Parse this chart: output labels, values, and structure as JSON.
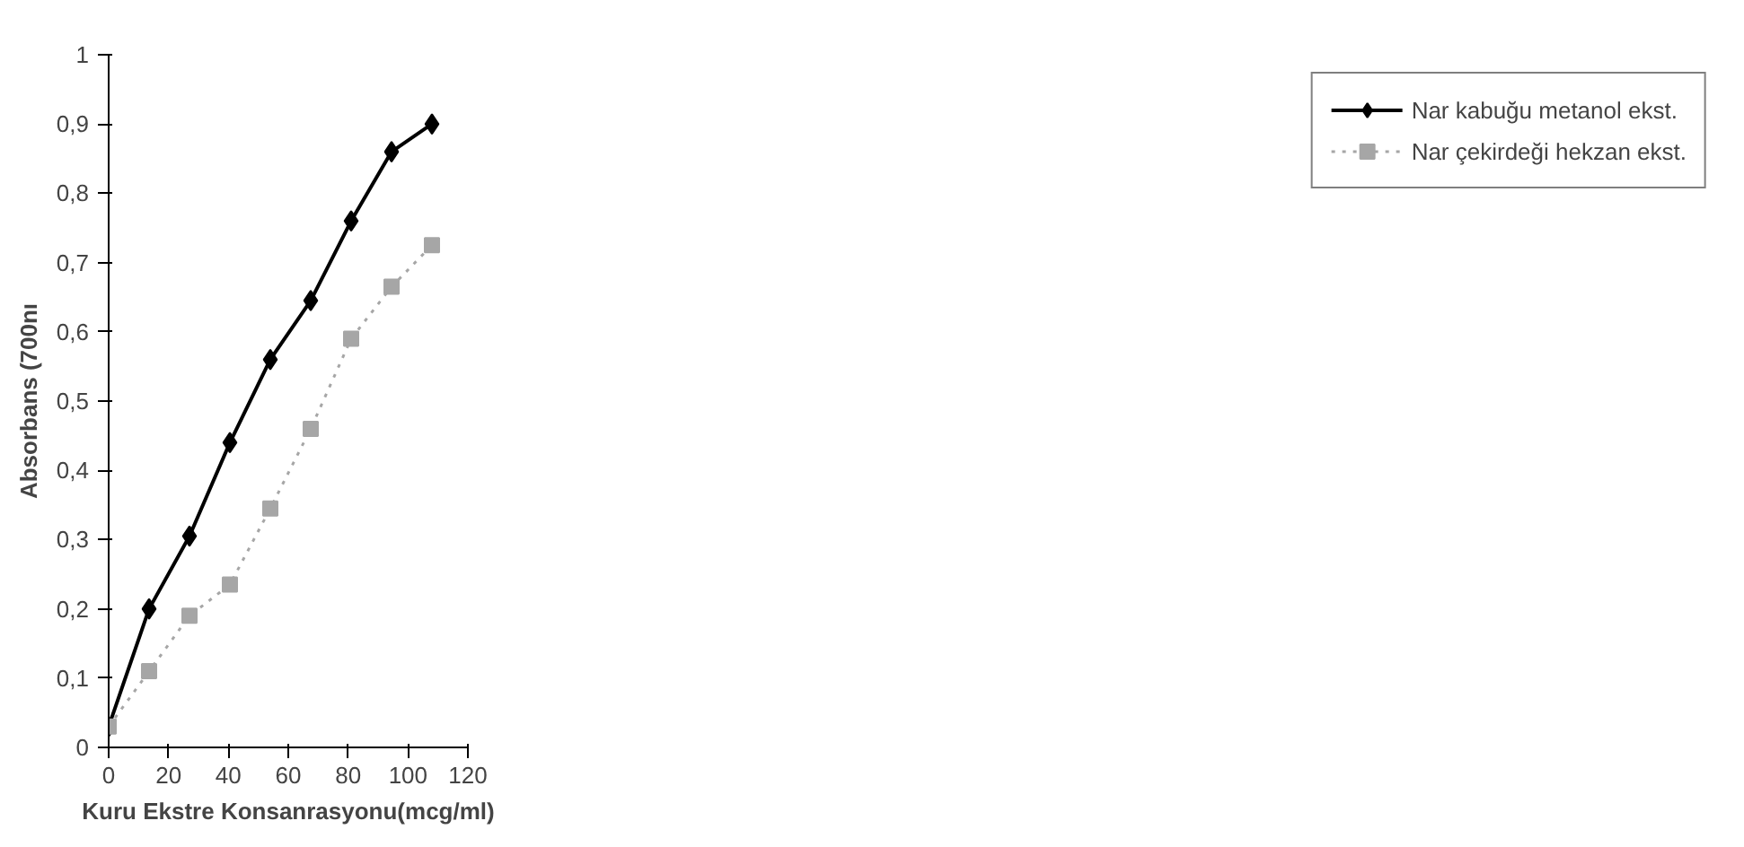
{
  "chart_data": {
    "type": "line",
    "xlabel": "Kuru Ekstre Konsanrasyonu(mcg/ml)",
    "ylabel": "Absorbans (700nı",
    "x": [
      0,
      13.5,
      27,
      40.5,
      54,
      67.5,
      81,
      94.5,
      108
    ],
    "series": [
      {
        "name": "Nar kabuğu metanol ekst.",
        "color": "#000000",
        "marker": "diamond",
        "line_style": "solid",
        "values": [
          0.03,
          0.2,
          0.305,
          0.44,
          0.56,
          0.645,
          0.76,
          0.86,
          0.9
        ]
      },
      {
        "name": "Nar çekirdeği hekzan ekst.",
        "color": "#a6a6a6",
        "marker": "square",
        "line_style": "dotted",
        "values": [
          0.03,
          0.11,
          0.19,
          0.235,
          0.345,
          0.46,
          0.59,
          0.665,
          0.725
        ]
      }
    ],
    "xlim": [
      0,
      120
    ],
    "xticks": [
      0,
      20,
      40,
      60,
      80,
      100,
      120
    ],
    "ylim": [
      0,
      1
    ],
    "yticks": [
      0,
      {
        "value": 0.1,
        "label": "0,1"
      },
      {
        "value": 0.2,
        "label": "0,2"
      },
      {
        "value": 0.3,
        "label": "0,3"
      },
      {
        "value": 0.4,
        "label": "0,4"
      },
      {
        "value": 0.5,
        "label": "0,5"
      },
      {
        "value": 0.6,
        "label": "0,6"
      },
      {
        "value": 0.7,
        "label": "0,7"
      },
      {
        "value": 0.8,
        "label": "0,8"
      },
      {
        "value": 0.9,
        "label": "0,9"
      },
      1
    ],
    "grid": false,
    "legend": "right"
  }
}
